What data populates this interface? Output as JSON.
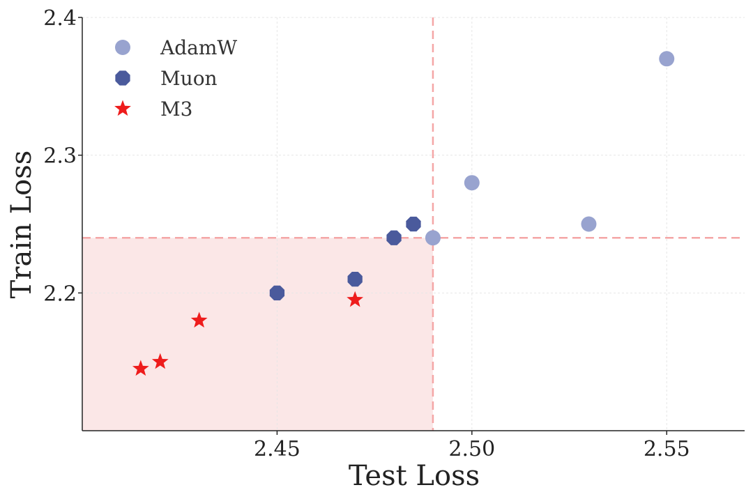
{
  "chart_data": {
    "type": "scatter",
    "xlabel": "Test Loss",
    "ylabel": "Train Loss",
    "xlim": [
      2.4,
      2.57
    ],
    "ylim": [
      2.1,
      2.4
    ],
    "xticks": [
      {
        "value": 2.45,
        "label": "2.45"
      },
      {
        "value": 2.5,
        "label": "2.50"
      },
      {
        "value": 2.55,
        "label": "2.55"
      }
    ],
    "yticks": [
      {
        "value": 2.2,
        "label": "2.2"
      },
      {
        "value": 2.3,
        "label": "2.3"
      },
      {
        "value": 2.4,
        "label": "2.4"
      }
    ],
    "grid": true,
    "legend_position": "top-left",
    "reference_lines": {
      "x": 2.49,
      "y": 2.24,
      "color": "#f4a6a6"
    },
    "shaded_region": {
      "x": [
        2.4,
        2.49
      ],
      "y": [
        2.1,
        2.24
      ],
      "color": "#fbe7e7"
    },
    "series": [
      {
        "name": "AdamW",
        "marker": "circle",
        "color": "#98a3cf",
        "points": [
          [
            2.49,
            2.24
          ],
          [
            2.5,
            2.28
          ],
          [
            2.53,
            2.25
          ],
          [
            2.55,
            2.37
          ]
        ]
      },
      {
        "name": "Muon",
        "marker": "octagon",
        "color": "#4a5a9c",
        "points": [
          [
            2.45,
            2.2
          ],
          [
            2.47,
            2.21
          ],
          [
            2.48,
            2.24
          ],
          [
            2.485,
            2.25
          ]
        ]
      },
      {
        "name": "M3",
        "marker": "star",
        "color": "#ee1c1c",
        "points": [
          [
            2.415,
            2.145
          ],
          [
            2.42,
            2.15
          ],
          [
            2.43,
            2.18
          ],
          [
            2.47,
            2.195
          ]
        ]
      }
    ]
  }
}
